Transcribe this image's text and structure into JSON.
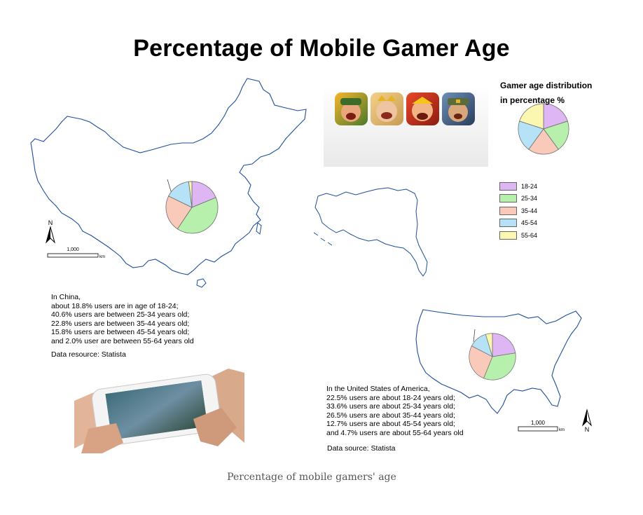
{
  "title": "Percentage of Mobile Gamer Age",
  "caption": "Percentage of mobile gamers' age",
  "legend": {
    "title_line1": "Gamer age distribution",
    "title_line2": "in percentage %",
    "items": [
      {
        "label": "18-24",
        "color": "#ddb6f3"
      },
      {
        "label": "25-34",
        "color": "#b7f0ac"
      },
      {
        "label": "35-44",
        "color": "#f9c9b9"
      },
      {
        "label": "45-54",
        "color": "#b5e2f7"
      },
      {
        "label": "55-64",
        "color": "#fbf6b0"
      }
    ]
  },
  "china": {
    "lines": [
      "In China,",
      "about 18.8% users are in age of 18-24;",
      "40.6% users are between 25-34 years old;",
      "22.8% users are between 35-44 years old;",
      "15.8% users are between 45-54 years old;",
      "and 2.0% user are between 55-64 years old"
    ],
    "source": "Data resource: Statista",
    "scale_label": "1,000",
    "scale_unit": "km",
    "north_label": "N"
  },
  "usa": {
    "lines": [
      "In the United States of America,",
      "22.5% users are about 18-24 years old;",
      "33.6% users are about 25-34 years old;",
      "26.5% users are about 35-44 years old;",
      "12.7% users are about 45-54 years old;",
      "and 4.7% users are about 55-64 years old"
    ],
    "source": "Data source: Statista",
    "scale_label": "1,000",
    "scale_unit": "km",
    "north_label": "N"
  },
  "chart_data": [
    {
      "type": "pie",
      "region": "China",
      "categories": [
        "18-24",
        "25-34",
        "35-44",
        "45-54",
        "55-64"
      ],
      "values": [
        18.8,
        40.6,
        22.8,
        15.8,
        2.0
      ]
    },
    {
      "type": "pie",
      "region": "United States",
      "categories": [
        "18-24",
        "25-34",
        "35-44",
        "45-54",
        "55-64"
      ],
      "values": [
        22.5,
        33.6,
        26.5,
        12.7,
        4.7
      ]
    },
    {
      "type": "pie",
      "region": "legend",
      "categories": [
        "18-24",
        "25-34",
        "35-44",
        "45-54",
        "55-64"
      ],
      "values": [
        20,
        20,
        20,
        20,
        20
      ]
    }
  ]
}
